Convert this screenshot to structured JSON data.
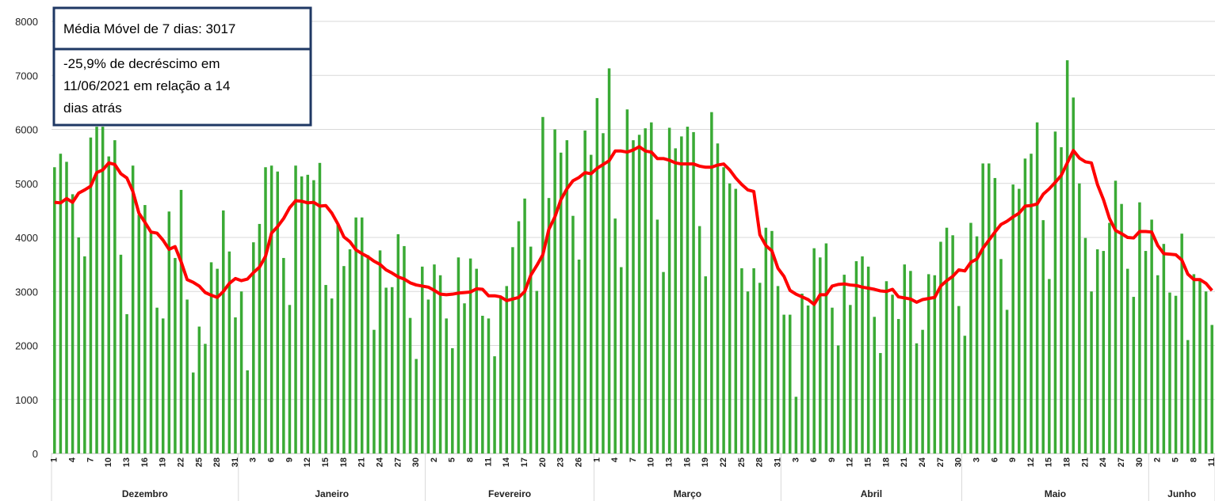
{
  "chart_data": {
    "type": "bar_line",
    "annotations": [
      {
        "lines": [
          "Média Móvel de 7 dias: 3017"
        ]
      },
      {
        "lines": [
          "-25,9% de decréscimo em",
          "11/06/2021 em relação a 14",
          "dias atrás"
        ]
      }
    ],
    "groups": [
      {
        "label": "Dezembro",
        "categories": [
          "1",
          null,
          null,
          "4",
          null,
          null,
          "7",
          null,
          null,
          "10",
          null,
          null,
          "13",
          null,
          null,
          "16",
          null,
          null,
          "19",
          null,
          null,
          "22",
          null,
          null,
          "25",
          null,
          null,
          "28",
          null,
          null,
          "31"
        ]
      },
      {
        "label": "Janeiro",
        "categories": [
          null,
          null,
          "3",
          null,
          null,
          "6",
          null,
          null,
          "9",
          null,
          null,
          "12",
          null,
          null,
          "15",
          null,
          null,
          "18",
          null,
          null,
          "21",
          null,
          null,
          "24",
          null,
          null,
          "27",
          null,
          null,
          "30",
          null
        ]
      },
      {
        "label": "Fevereiro",
        "categories": [
          null,
          "2",
          null,
          null,
          "5",
          null,
          null,
          "8",
          null,
          null,
          "11",
          null,
          null,
          "14",
          null,
          null,
          "17",
          null,
          null,
          "20",
          null,
          null,
          "23",
          null,
          null,
          "26",
          null,
          null
        ]
      },
      {
        "label": "Março",
        "categories": [
          "1",
          null,
          null,
          "4",
          null,
          null,
          "7",
          null,
          null,
          "10",
          null,
          null,
          "13",
          null,
          null,
          "16",
          null,
          null,
          "19",
          null,
          null,
          "22",
          null,
          null,
          "25",
          null,
          null,
          "28",
          null,
          null,
          "31"
        ]
      },
      {
        "label": "Abril",
        "categories": [
          null,
          null,
          "3",
          null,
          null,
          "6",
          null,
          null,
          "9",
          null,
          null,
          "12",
          null,
          null,
          "15",
          null,
          null,
          "18",
          null,
          null,
          "21",
          null,
          null,
          "24",
          null,
          null,
          "27",
          null,
          null,
          "30"
        ]
      },
      {
        "label": "Maio",
        "categories": [
          null,
          null,
          "3",
          null,
          null,
          "6",
          null,
          null,
          "9",
          null,
          null,
          "12",
          null,
          null,
          "15",
          null,
          null,
          "18",
          null,
          null,
          "21",
          null,
          null,
          "24",
          null,
          null,
          "27",
          null,
          null,
          "30",
          null
        ]
      },
      {
        "label": "Junho",
        "categories": [
          null,
          "2",
          null,
          null,
          "5",
          null,
          null,
          "8",
          null,
          null,
          "11"
        ]
      }
    ],
    "series": [
      {
        "type": "bar",
        "color": "#3aaa35",
        "values": [
          5300,
          5550,
          5400,
          4800,
          4000,
          3650,
          5850,
          6050,
          6050,
          5500,
          5800,
          3680,
          2580,
          5330,
          4420,
          4600,
          4080,
          2700,
          2500,
          4480,
          3620,
          4880,
          2850,
          1500,
          2350,
          2030,
          3540,
          3420,
          4500,
          3740,
          2520,
          3000,
          1540,
          3910,
          4250,
          5300,
          5330,
          5220,
          3620,
          2750,
          5330,
          5130,
          5160,
          5060,
          5380,
          3120,
          2870,
          4260,
          3470,
          3780,
          4370,
          4370,
          3670,
          2290,
          3760,
          3070,
          3080,
          4060,
          3840,
          2510,
          1750,
          3460,
          2850,
          3500,
          3300,
          2500,
          1950,
          3630,
          2780,
          3610,
          3420,
          2550,
          2500,
          1800,
          2900,
          3100,
          3820,
          4300,
          4720,
          3830,
          3010,
          6230,
          4730,
          6000,
          5570,
          5800,
          4400,
          3590,
          5980,
          5530,
          6580,
          5930,
          7130,
          4350,
          3450,
          6370,
          5800,
          5900,
          6020,
          6130,
          4330,
          3360,
          6030,
          5650,
          5870,
          6050,
          5950,
          4210,
          3280,
          6320,
          5740,
          5300,
          5000,
          4900,
          3430,
          3000,
          3430,
          3160,
          4180,
          4120,
          3100,
          2570,
          2570,
          1050,
          2960,
          2740,
          3800,
          3630,
          3890,
          2700,
          2000,
          3310,
          2750,
          3560,
          3650,
          3460,
          2530,
          1860,
          3190,
          2940,
          2490,
          3500,
          3380,
          2040,
          2290,
          3320,
          3300,
          3920,
          4180,
          4040,
          2730,
          2180,
          4270,
          4020,
          5370,
          5370,
          5100,
          3600,
          2660,
          4980,
          4900,
          5460,
          5550,
          6130,
          4320,
          3230,
          5960,
          5670,
          7280,
          6590,
          5000,
          3990,
          3000,
          3780,
          3750,
          4270,
          5050,
          4620,
          3420,
          2900,
          4650,
          3750,
          4330,
          3300,
          3880,
          2980,
          2920,
          4070,
          2100,
          3320,
          3200,
          3000,
          2380
        ]
      },
      {
        "type": "line",
        "color": "#ff0000",
        "values": [
          4650,
          4640,
          4720,
          4650,
          4820,
          4880,
          4950,
          5200,
          5250,
          5380,
          5350,
          5180,
          5100,
          4850,
          4450,
          4280,
          4100,
          4080,
          3950,
          3780,
          3830,
          3550,
          3220,
          3170,
          3100,
          2980,
          2930,
          2890,
          3000,
          3150,
          3240,
          3200,
          3230,
          3350,
          3450,
          3650,
          4080,
          4200,
          4350,
          4550,
          4680,
          4670,
          4640,
          4650,
          4580,
          4590,
          4450,
          4250,
          4010,
          3920,
          3770,
          3700,
          3640,
          3560,
          3500,
          3400,
          3340,
          3270,
          3230,
          3160,
          3120,
          3100,
          3080,
          3020,
          2950,
          2940,
          2950,
          2970,
          2980,
          2990,
          3050,
          3040,
          2920,
          2920,
          2900,
          2830,
          2860,
          2890,
          3000,
          3300,
          3480,
          3680,
          4150,
          4380,
          4700,
          4900,
          5050,
          5110,
          5200,
          5180,
          5280,
          5350,
          5420,
          5600,
          5600,
          5580,
          5620,
          5680,
          5600,
          5580,
          5460,
          5460,
          5430,
          5380,
          5360,
          5360,
          5360,
          5320,
          5300,
          5300,
          5340,
          5360,
          5250,
          5100,
          4980,
          4880,
          4850,
          4050,
          3850,
          3750,
          3430,
          3280,
          3020,
          2950,
          2900,
          2850,
          2760,
          2940,
          2940,
          3100,
          3130,
          3140,
          3120,
          3110,
          3080,
          3060,
          3040,
          3010,
          3000,
          3040,
          2900,
          2880,
          2860,
          2800,
          2850,
          2870,
          2890,
          3100,
          3200,
          3280,
          3400,
          3380,
          3540,
          3600,
          3800,
          3950,
          4100,
          4240,
          4300,
          4380,
          4450,
          4580,
          4590,
          4620,
          4800,
          4900,
          5020,
          5150,
          5380,
          5610,
          5470,
          5400,
          5380,
          4980,
          4700,
          4350,
          4130,
          4070,
          4000,
          3990,
          4110,
          4110,
          4100,
          3850,
          3700,
          3690,
          3680,
          3580,
          3320,
          3220,
          3220,
          3150,
          3017
        ]
      }
    ],
    "ylim": [
      0,
      8000
    ],
    "yticks": [
      0,
      1000,
      2000,
      3000,
      4000,
      5000,
      6000,
      7000,
      8000
    ],
    "grid": true
  }
}
